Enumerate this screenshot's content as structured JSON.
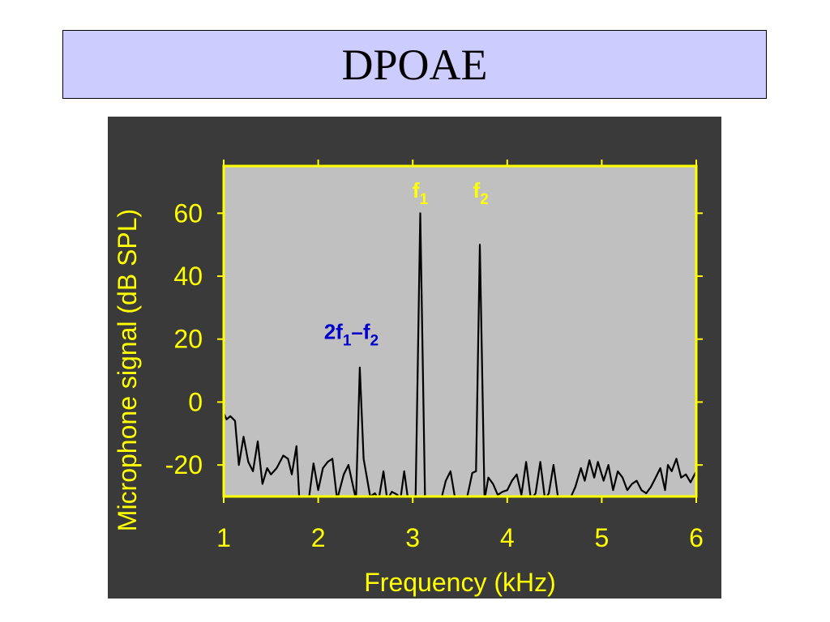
{
  "slide": {
    "title": "DPOAE"
  },
  "colors": {
    "title_bg": "#ccccff",
    "figure_bg": "#3a3a3a",
    "plot_bg": "#c0c0c0",
    "axis": "#ffff00",
    "trace": "#000000",
    "annotation_primary": "#ffff00",
    "annotation_dp": "#0000cc"
  },
  "chart_data": {
    "type": "line",
    "xlabel": "Frequency  (kHz)",
    "ylabel": "Microphone signal  (dB SPL)",
    "xlim": [
      1,
      6
    ],
    "ylim": [
      -30,
      75
    ],
    "x_ticks": [
      1,
      2,
      3,
      4,
      5,
      6
    ],
    "x_tick_labels": [
      "1",
      "2",
      "3",
      "4",
      "5",
      "6"
    ],
    "y_ticks": [
      -20,
      0,
      20,
      40,
      60
    ],
    "y_tick_labels": [
      "-20",
      "0",
      "20",
      "40",
      "60"
    ],
    "grid": false,
    "series": [
      {
        "points": [
          [
            1.0,
            -3.5
          ],
          [
            1.03,
            -5.5
          ],
          [
            1.07,
            -4.5
          ],
          [
            1.12,
            -6
          ],
          [
            1.16,
            -20
          ],
          [
            1.21,
            -11
          ],
          [
            1.26,
            -19
          ],
          [
            1.31,
            -22
          ],
          [
            1.36,
            -12.5
          ],
          [
            1.41,
            -26
          ],
          [
            1.46,
            -21
          ],
          [
            1.5,
            -23
          ],
          [
            1.56,
            -21
          ],
          [
            1.63,
            -17
          ],
          [
            1.68,
            -18
          ],
          [
            1.72,
            -23
          ],
          [
            1.77,
            -14
          ],
          [
            1.8,
            -31
          ],
          [
            1.9,
            -31
          ],
          [
            1.95,
            -19.5
          ],
          [
            2.0,
            -28
          ],
          [
            2.05,
            -21
          ],
          [
            2.1,
            -19
          ],
          [
            2.15,
            -18
          ],
          [
            2.2,
            -31
          ],
          [
            2.27,
            -23
          ],
          [
            2.32,
            -20
          ],
          [
            2.4,
            -31
          ],
          [
            2.44,
            11
          ],
          [
            2.48,
            -18
          ],
          [
            2.55,
            -30
          ],
          [
            2.6,
            -29
          ],
          [
            2.64,
            -31
          ],
          [
            2.69,
            -22
          ],
          [
            2.73,
            -31
          ],
          [
            2.78,
            -28.5
          ],
          [
            2.84,
            -29.5
          ],
          [
            2.87,
            -31
          ],
          [
            2.91,
            -22
          ],
          [
            2.95,
            -31
          ],
          [
            3.03,
            -31
          ],
          [
            3.08,
            60
          ],
          [
            3.13,
            -31
          ],
          [
            3.3,
            -31
          ],
          [
            3.35,
            -25
          ],
          [
            3.4,
            -22
          ],
          [
            3.45,
            -31
          ],
          [
            3.57,
            -31
          ],
          [
            3.63,
            -22.5
          ],
          [
            3.67,
            -22
          ],
          [
            3.71,
            50
          ],
          [
            3.76,
            -31
          ],
          [
            3.8,
            -24
          ],
          [
            3.85,
            -26
          ],
          [
            3.9,
            -29.5
          ],
          [
            3.95,
            -28.5
          ],
          [
            4.0,
            -28
          ],
          [
            4.05,
            -25
          ],
          [
            4.1,
            -23
          ],
          [
            4.15,
            -29.5
          ],
          [
            4.2,
            -19
          ],
          [
            4.25,
            -31
          ],
          [
            4.3,
            -29
          ],
          [
            4.35,
            -19
          ],
          [
            4.4,
            -31
          ],
          [
            4.44,
            -29
          ],
          [
            4.49,
            -20
          ],
          [
            4.54,
            -31
          ],
          [
            4.66,
            -31
          ],
          [
            4.72,
            -27
          ],
          [
            4.78,
            -21
          ],
          [
            4.82,
            -25
          ],
          [
            4.87,
            -18.5
          ],
          [
            4.92,
            -24
          ],
          [
            4.96,
            -19
          ],
          [
            5.02,
            -25
          ],
          [
            5.07,
            -20
          ],
          [
            5.12,
            -28
          ],
          [
            5.17,
            -22
          ],
          [
            5.22,
            -24
          ],
          [
            5.27,
            -28
          ],
          [
            5.32,
            -26
          ],
          [
            5.37,
            -25
          ],
          [
            5.42,
            -28
          ],
          [
            5.47,
            -29
          ],
          [
            5.52,
            -27
          ],
          [
            5.57,
            -24
          ],
          [
            5.62,
            -21
          ],
          [
            5.67,
            -28
          ],
          [
            5.7,
            -20
          ],
          [
            5.74,
            -22
          ],
          [
            5.79,
            -18
          ],
          [
            5.84,
            -24
          ],
          [
            5.89,
            -23
          ],
          [
            5.94,
            -25.5
          ],
          [
            6.0,
            -22
          ]
        ]
      }
    ],
    "annotations": [
      {
        "base": "f",
        "sub": "1",
        "suffix": "",
        "sub2": "",
        "x": 3.08,
        "y": 65,
        "color_key": "annotation_primary"
      },
      {
        "base": "f",
        "sub": "2",
        "suffix": "",
        "sub2": "",
        "x": 3.72,
        "y": 65,
        "color_key": "annotation_primary"
      },
      {
        "base": "2f",
        "sub": "1",
        "suffix": "–f",
        "sub2": "2",
        "x": 2.35,
        "y": 20,
        "color_key": "annotation_dp"
      }
    ]
  }
}
